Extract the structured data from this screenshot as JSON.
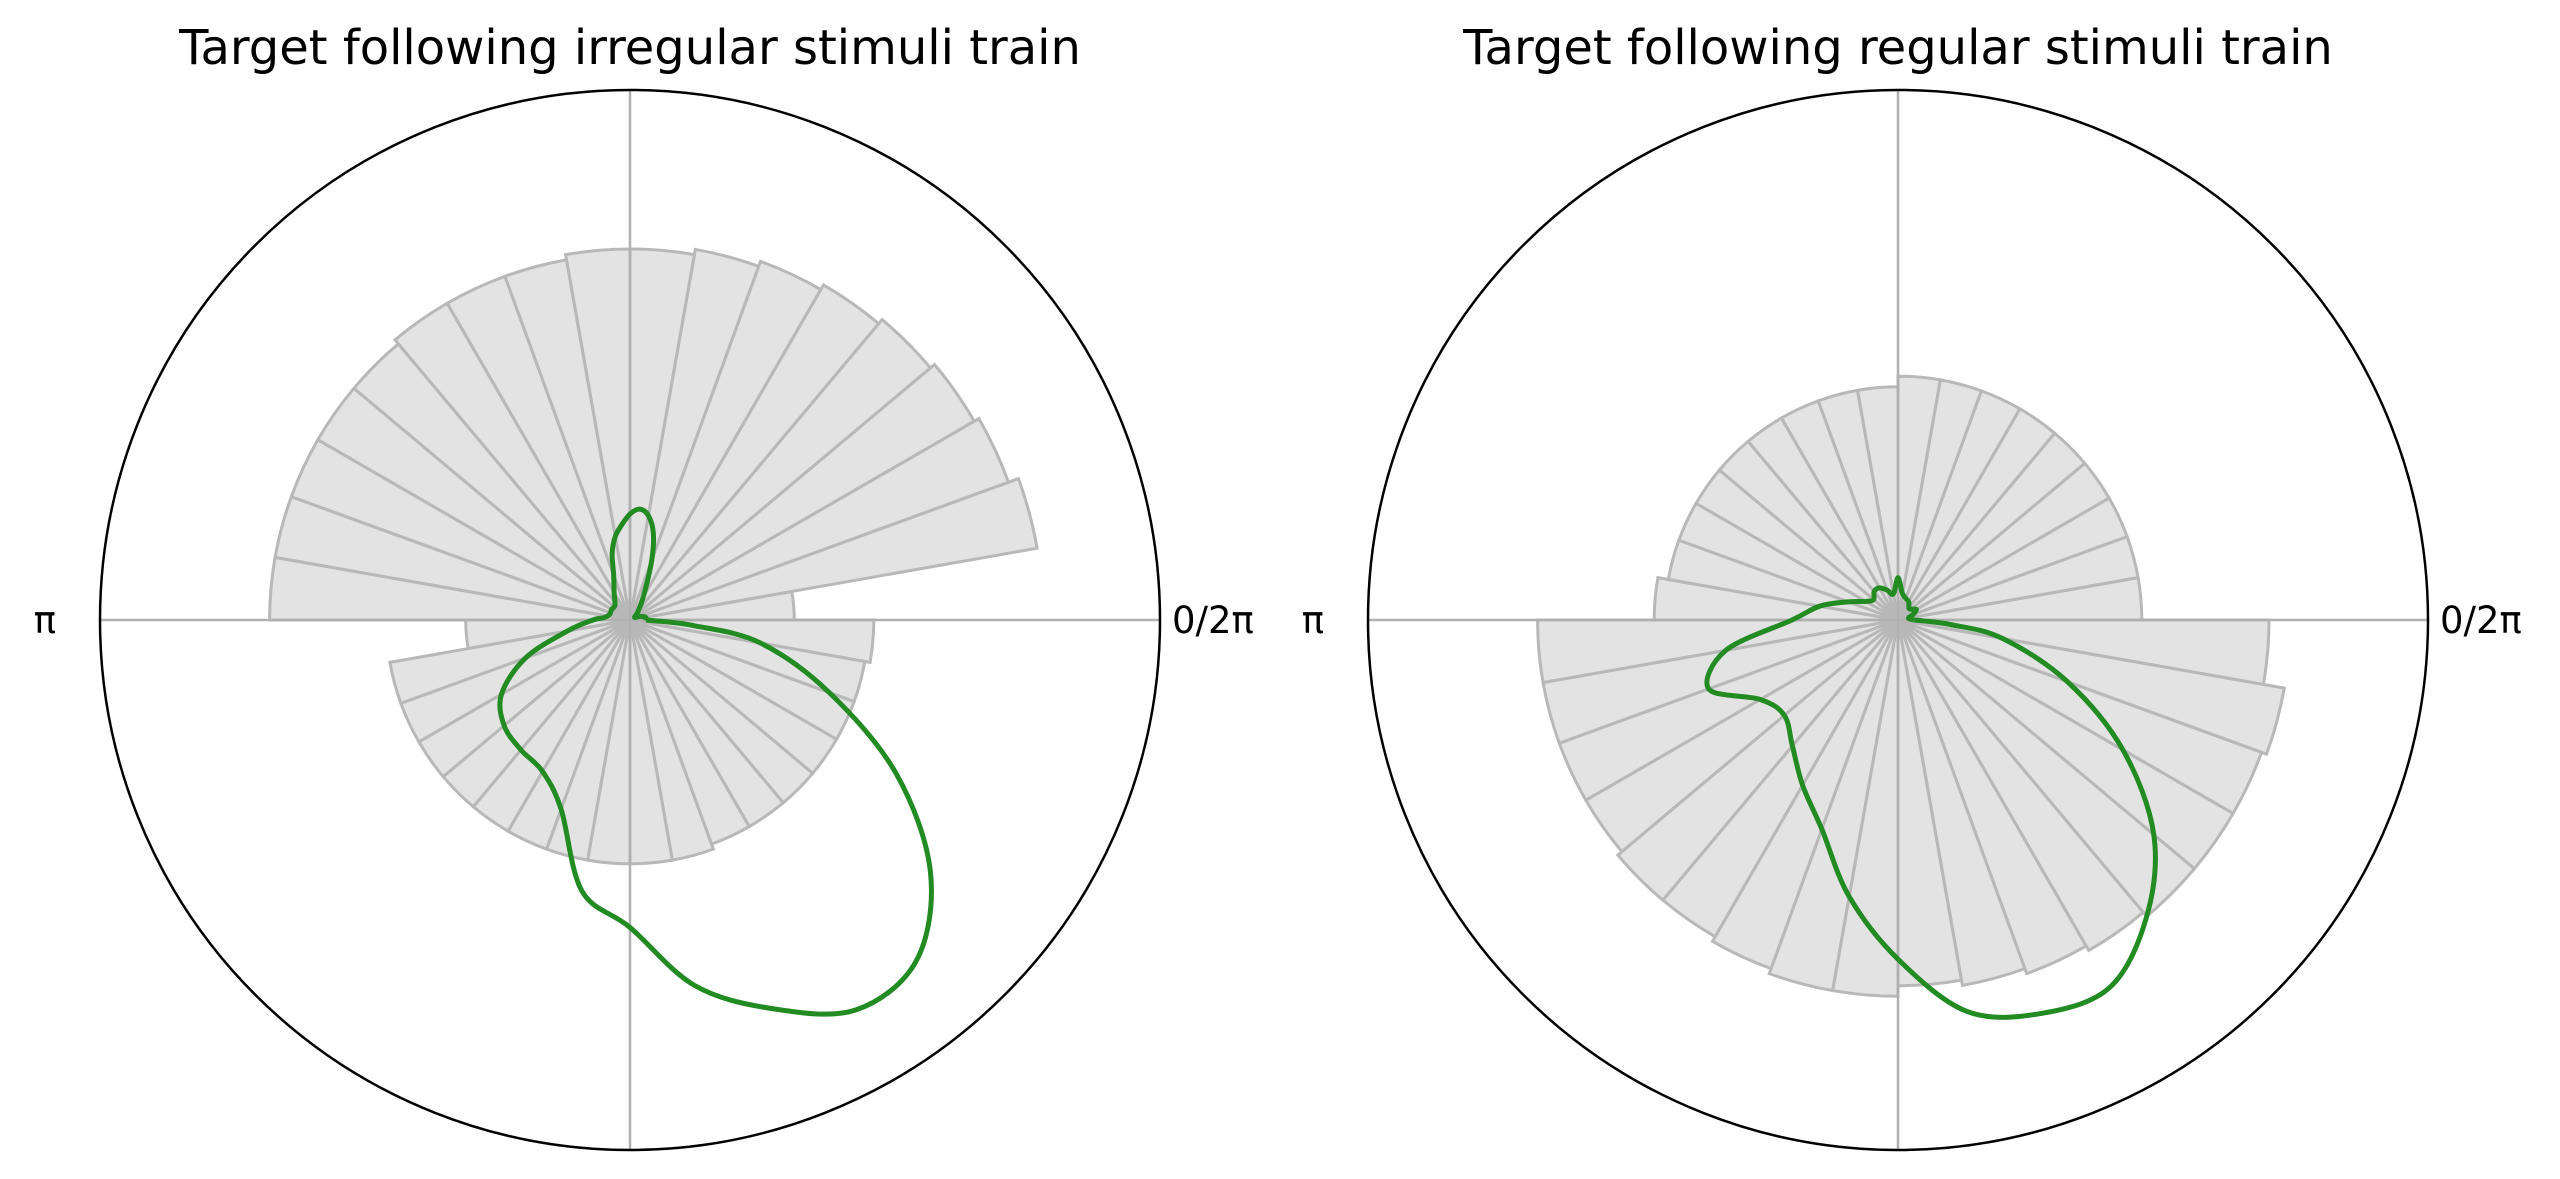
{
  "chart_data": [
    {
      "type": "polar",
      "title": "Target following irregular stimuli train",
      "angle_tick_labels": [
        {
          "angle": 0,
          "label": "0/2π"
        },
        {
          "angle": 180,
          "label": "π"
        }
      ],
      "grid": true,
      "histogram": {
        "bins": 36,
        "bin_width_deg": 10,
        "color": "#cccccc",
        "values": [
          0.31,
          0.78,
          0.76,
          0.75,
          0.74,
          0.73,
          0.72,
          0.71,
          0.7,
          0.7,
          0.69,
          0.69,
          0.69,
          0.68,
          0.68,
          0.68,
          0.68,
          0.68,
          0.31,
          0.46,
          0.46,
          0.46,
          0.46,
          0.46,
          0.46,
          0.46,
          0.46,
          0.46,
          0.46,
          0.45,
          0.45,
          0.45,
          0.45,
          0.45,
          0.45,
          0.46
        ]
      },
      "series": [
        {
          "color": "#228b22",
          "points": [
            [
              0,
              0.03
            ],
            [
              10,
              0.03
            ],
            [
              20,
              0.02
            ],
            [
              30,
              0.01
            ],
            [
              45,
              0.02
            ],
            [
              60,
              0.05
            ],
            [
              70,
              0.12
            ],
            [
              75,
              0.17
            ],
            [
              80,
              0.2
            ],
            [
              85,
              0.21
            ],
            [
              90,
              0.2
            ],
            [
              95,
              0.18
            ],
            [
              100,
              0.16
            ],
            [
              105,
              0.13
            ],
            [
              110,
              0.09
            ],
            [
              120,
              0.06
            ],
            [
              135,
              0.04
            ],
            [
              150,
              0.04
            ],
            [
              165,
              0.04
            ],
            [
              175,
              0.05
            ],
            [
              180,
              0.07
            ],
            [
              190,
              0.12
            ],
            [
              200,
              0.21
            ],
            [
              210,
              0.28
            ],
            [
              220,
              0.31
            ],
            [
              230,
              0.32
            ],
            [
              240,
              0.33
            ],
            [
              250,
              0.38
            ],
            [
              260,
              0.52
            ],
            [
              270,
              0.58
            ],
            [
              280,
              0.7
            ],
            [
              290,
              0.78
            ],
            [
              300,
              0.85
            ],
            [
              310,
              0.84
            ],
            [
              320,
              0.74
            ],
            [
              330,
              0.58
            ],
            [
              340,
              0.4
            ],
            [
              350,
              0.25
            ],
            [
              355,
              0.12
            ],
            [
              360,
              0.03
            ]
          ]
        }
      ]
    },
    {
      "type": "polar",
      "title": "Target following regular stimuli train",
      "angle_tick_labels": [
        {
          "angle": 0,
          "label": "0/2π"
        },
        {
          "angle": 180,
          "label": "π"
        }
      ],
      "grid": true,
      "histogram": {
        "bins": 36,
        "bin_width_deg": 10,
        "color": "#cccccc",
        "values": [
          0.46,
          0.46,
          0.46,
          0.46,
          0.46,
          0.46,
          0.46,
          0.46,
          0.46,
          0.44,
          0.44,
          0.44,
          0.44,
          0.44,
          0.44,
          0.44,
          0.44,
          0.46,
          0.68,
          0.68,
          0.68,
          0.68,
          0.69,
          0.69,
          0.7,
          0.71,
          0.71,
          0.69,
          0.7,
          0.71,
          0.72,
          0.73,
          0.73,
          0.73,
          0.74,
          0.7
        ]
      },
      "series": [
        {
          "color": "#228b22",
          "points": [
            [
              0,
              0.03
            ],
            [
              10,
              0.02
            ],
            [
              20,
              0.03
            ],
            [
              30,
              0.04
            ],
            [
              45,
              0.03
            ],
            [
              60,
              0.04
            ],
            [
              80,
              0.05
            ],
            [
              90,
              0.08
            ],
            [
              100,
              0.05
            ],
            [
              110,
              0.06
            ],
            [
              120,
              0.07
            ],
            [
              130,
              0.07
            ],
            [
              140,
              0.06
            ],
            [
              150,
              0.07
            ],
            [
              160,
              0.1
            ],
            [
              170,
              0.15
            ],
            [
              180,
              0.2
            ],
            [
              190,
              0.33
            ],
            [
              200,
              0.38
            ],
            [
              210,
              0.3
            ],
            [
              220,
              0.28
            ],
            [
              230,
              0.31
            ],
            [
              240,
              0.36
            ],
            [
              250,
              0.42
            ],
            [
              260,
              0.53
            ],
            [
              270,
              0.64
            ],
            [
              280,
              0.75
            ],
            [
              290,
              0.79
            ],
            [
              300,
              0.8
            ],
            [
              310,
              0.73
            ],
            [
              320,
              0.63
            ],
            [
              330,
              0.49
            ],
            [
              340,
              0.34
            ],
            [
              350,
              0.2
            ],
            [
              355,
              0.1
            ],
            [
              360,
              0.03
            ]
          ]
        }
      ]
    }
  ]
}
